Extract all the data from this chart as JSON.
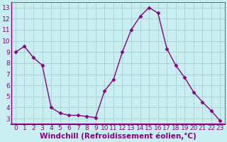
{
  "x": [
    0,
    1,
    2,
    3,
    4,
    5,
    6,
    7,
    8,
    9,
    10,
    11,
    12,
    13,
    14,
    15,
    16,
    17,
    18,
    19,
    20,
    21,
    22,
    23
  ],
  "y": [
    9.0,
    9.5,
    8.5,
    7.8,
    4.0,
    3.5,
    3.3,
    3.3,
    3.2,
    3.1,
    5.5,
    6.5,
    9.0,
    11.0,
    12.2,
    13.0,
    12.5,
    9.3,
    7.8,
    6.7,
    5.4,
    4.5,
    3.7,
    2.8
  ],
  "line_color": "#880088",
  "marker": "D",
  "marker_size": 2.5,
  "bg_color": "#c8eef0",
  "grid_color": "#aad4d8",
  "xlabel": "Windchill (Refroidissement éolien,°C)",
  "xlim": [
    -0.5,
    23.5
  ],
  "ylim": [
    2.5,
    13.5
  ],
  "yticks": [
    3,
    4,
    5,
    6,
    7,
    8,
    9,
    10,
    11,
    12,
    13
  ],
  "xticks": [
    0,
    1,
    2,
    3,
    4,
    5,
    6,
    7,
    8,
    9,
    10,
    11,
    12,
    13,
    14,
    15,
    16,
    17,
    18,
    19,
    20,
    21,
    22,
    23
  ],
  "tick_color": "#880088",
  "label_color": "#880088",
  "spine_color": "#880088",
  "font_size": 6.5,
  "xlabel_font_size": 7.5,
  "linewidth": 1.0
}
